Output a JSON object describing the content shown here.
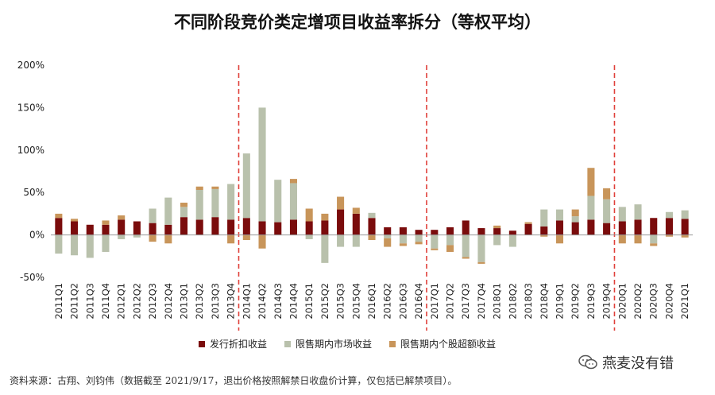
{
  "chart_data": {
    "type": "bar",
    "stacked": true,
    "title": "不同阶段竞价类定增项目收益率拆分（等权平均）",
    "ylim": [
      -50,
      200
    ],
    "yticks": [
      -50,
      0,
      50,
      100,
      150,
      200
    ],
    "ytick_labels": [
      "-50%",
      "0%",
      "50%",
      "100%",
      "150%",
      "200%"
    ],
    "categories": [
      "2011Q1",
      "2011Q2",
      "2011Q3",
      "2011Q4",
      "2012Q1",
      "2012Q2",
      "2012Q3",
      "2012Q4",
      "2013Q1",
      "2013Q2",
      "2013Q3",
      "2013Q4",
      "2014Q1",
      "2014Q2",
      "2014Q3",
      "2014Q4",
      "2015Q1",
      "2015Q2",
      "2015Q3",
      "2015Q4",
      "2016Q1",
      "2016Q2",
      "2016Q3",
      "2016Q4",
      "2017Q1",
      "2017Q2",
      "2017Q3",
      "2017Q4",
      "2018Q1",
      "2018Q2",
      "2018Q3",
      "2018Q4",
      "2019Q1",
      "2019Q2",
      "2019Q3",
      "2019Q4",
      "2020Q1",
      "2020Q2",
      "2020Q3",
      "2020Q4",
      "2021Q1"
    ],
    "series": [
      {
        "name": "发行折扣收益",
        "color": "#7a0c0c",
        "values": [
          20,
          16,
          12,
          12,
          18,
          16,
          14,
          12,
          21,
          18,
          21,
          18,
          20,
          16,
          15,
          18,
          16,
          17,
          30,
          25,
          20,
          9,
          9,
          6,
          6,
          9,
          17,
          8,
          8,
          5,
          13,
          10,
          17,
          15,
          18,
          14,
          16,
          18,
          20,
          20,
          19
        ]
      },
      {
        "name": "限售期内市场收益",
        "color": "#b9c1ac",
        "values": [
          -22,
          -24,
          -27,
          -20,
          -5,
          -3,
          17,
          32,
          12,
          35,
          33,
          42,
          76,
          134,
          50,
          43,
          -5,
          -33,
          -14,
          -14,
          6,
          -4,
          -10,
          -8,
          -16,
          -12,
          -26,
          -32,
          -12,
          -14,
          0,
          20,
          13,
          7,
          28,
          28,
          17,
          18,
          -10,
          7,
          10
        ]
      },
      {
        "name": "限售期内个股超额收益",
        "color": "#c8955a",
        "values": [
          5,
          3,
          0,
          5,
          5,
          0,
          -8,
          -10,
          5,
          4,
          3,
          -10,
          -6,
          -16,
          0,
          5,
          15,
          8,
          15,
          7,
          -6,
          -10,
          -3,
          -3,
          -2,
          -8,
          -2,
          -2,
          3,
          0,
          2,
          -2,
          -10,
          8,
          33,
          13,
          -10,
          -10,
          -3,
          -2,
          -3
        ]
      }
    ],
    "dividers_after": [
      "2013Q4",
      "2016Q4",
      "2019Q4"
    ],
    "legend_position": "bottom"
  },
  "source_text": "资料来源：古翔、刘钧伟（数据截至 2021/9/17，退出价格按照解禁日收盘价计算，仅包括已解禁项目）。",
  "watermark_text": "燕麦没有错"
}
